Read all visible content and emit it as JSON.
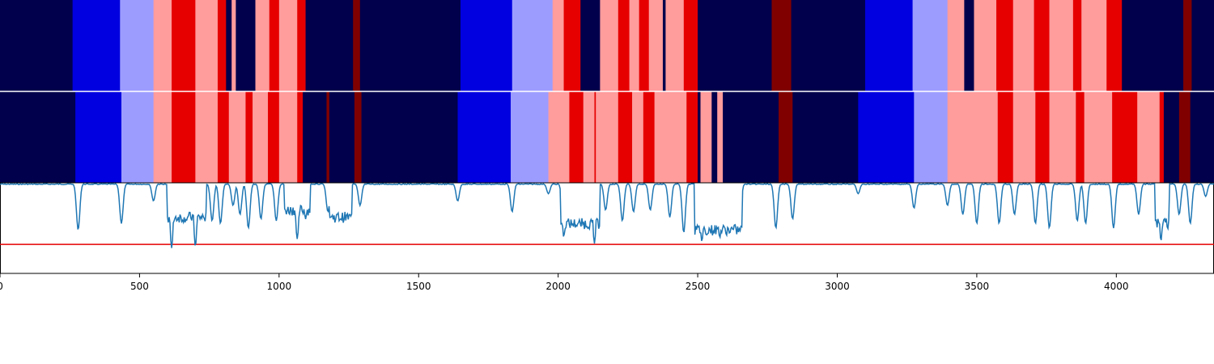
{
  "chart_data": {
    "type": "heatmap",
    "xlim": [
      0,
      4350
    ],
    "x_ticks": [
      0,
      500,
      1000,
      1500,
      2000,
      2500,
      3000,
      3500,
      4000
    ],
    "palette": {
      "0": "#00004c",
      "1": "#0000e0",
      "2": "#9c9cff",
      "3": "#ff9c9c",
      "4": "#e60000",
      "5": "#800000"
    },
    "tracks": [
      {
        "segments": [
          [
            0,
            260,
            0
          ],
          [
            260,
            430,
            1
          ],
          [
            430,
            550,
            2
          ],
          [
            550,
            615,
            3
          ],
          [
            615,
            700,
            4
          ],
          [
            700,
            780,
            3
          ],
          [
            780,
            810,
            4
          ],
          [
            810,
            830,
            0
          ],
          [
            830,
            845,
            3
          ],
          [
            845,
            915,
            0
          ],
          [
            915,
            965,
            3
          ],
          [
            965,
            1000,
            4
          ],
          [
            1000,
            1065,
            3
          ],
          [
            1065,
            1095,
            4
          ],
          [
            1095,
            1265,
            0
          ],
          [
            1265,
            1290,
            5
          ],
          [
            1290,
            1650,
            0
          ],
          [
            1650,
            1835,
            1
          ],
          [
            1835,
            1980,
            2
          ],
          [
            1980,
            2020,
            3
          ],
          [
            2020,
            2080,
            4
          ],
          [
            2080,
            2150,
            0
          ],
          [
            2150,
            2215,
            3
          ],
          [
            2215,
            2255,
            4
          ],
          [
            2255,
            2290,
            3
          ],
          [
            2290,
            2325,
            4
          ],
          [
            2325,
            2375,
            3
          ],
          [
            2375,
            2385,
            0
          ],
          [
            2385,
            2395,
            3
          ],
          [
            2395,
            2450,
            3
          ],
          [
            2450,
            2500,
            4
          ],
          [
            2500,
            2765,
            0
          ],
          [
            2765,
            2835,
            5
          ],
          [
            2835,
            3100,
            0
          ],
          [
            3100,
            3270,
            1
          ],
          [
            3270,
            3395,
            2
          ],
          [
            3395,
            3455,
            3
          ],
          [
            3455,
            3490,
            0
          ],
          [
            3490,
            3570,
            3
          ],
          [
            3570,
            3630,
            4
          ],
          [
            3630,
            3705,
            3
          ],
          [
            3705,
            3760,
            4
          ],
          [
            3760,
            3845,
            3
          ],
          [
            3845,
            3875,
            4
          ],
          [
            3875,
            3965,
            3
          ],
          [
            3965,
            4020,
            4
          ],
          [
            4020,
            4240,
            0
          ],
          [
            4240,
            4270,
            5
          ],
          [
            4270,
            4350,
            0
          ]
        ]
      },
      {
        "segments": [
          [
            0,
            270,
            0
          ],
          [
            270,
            435,
            1
          ],
          [
            435,
            550,
            2
          ],
          [
            550,
            615,
            3
          ],
          [
            615,
            700,
            4
          ],
          [
            700,
            780,
            3
          ],
          [
            780,
            820,
            4
          ],
          [
            820,
            880,
            3
          ],
          [
            880,
            905,
            4
          ],
          [
            905,
            960,
            3
          ],
          [
            960,
            1000,
            4
          ],
          [
            1000,
            1065,
            3
          ],
          [
            1065,
            1085,
            4
          ],
          [
            1085,
            1170,
            0
          ],
          [
            1170,
            1180,
            5
          ],
          [
            1180,
            1270,
            0
          ],
          [
            1270,
            1295,
            5
          ],
          [
            1295,
            1640,
            0
          ],
          [
            1640,
            1830,
            1
          ],
          [
            1830,
            1965,
            2
          ],
          [
            1965,
            2040,
            3
          ],
          [
            2040,
            2090,
            4
          ],
          [
            2090,
            2130,
            3
          ],
          [
            2130,
            2135,
            4
          ],
          [
            2135,
            2215,
            3
          ],
          [
            2215,
            2265,
            4
          ],
          [
            2265,
            2305,
            3
          ],
          [
            2305,
            2345,
            4
          ],
          [
            2345,
            2460,
            3
          ],
          [
            2460,
            2500,
            4
          ],
          [
            2500,
            2510,
            0
          ],
          [
            2510,
            2550,
            3
          ],
          [
            2550,
            2570,
            0
          ],
          [
            2570,
            2590,
            3
          ],
          [
            2590,
            2790,
            0
          ],
          [
            2790,
            2840,
            5
          ],
          [
            2840,
            3075,
            0
          ],
          [
            3075,
            3275,
            1
          ],
          [
            3275,
            3395,
            2
          ],
          [
            3395,
            3575,
            3
          ],
          [
            3575,
            3630,
            4
          ],
          [
            3630,
            3710,
            3
          ],
          [
            3710,
            3760,
            4
          ],
          [
            3760,
            3855,
            3
          ],
          [
            3855,
            3885,
            4
          ],
          [
            3885,
            3985,
            3
          ],
          [
            3985,
            4075,
            4
          ],
          [
            4075,
            4155,
            3
          ],
          [
            4155,
            4170,
            4
          ],
          [
            4170,
            4225,
            0
          ],
          [
            4225,
            4265,
            5
          ],
          [
            4265,
            4350,
            0
          ]
        ]
      }
    ],
    "line": {
      "color": "#1f77b4",
      "ylim": [
        0,
        1
      ],
      "threshold": 0.32,
      "threshold_color": "#e60000",
      "baseline": 0.99,
      "dips": [
        [
          280,
          0.48
        ],
        [
          435,
          0.55
        ],
        [
          550,
          0.8
        ],
        [
          615,
          0.28
        ],
        [
          660,
          0.62
        ],
        [
          700,
          0.3
        ],
        [
          760,
          0.58
        ],
        [
          790,
          0.55
        ],
        [
          835,
          0.75
        ],
        [
          860,
          0.65
        ],
        [
          890,
          0.5
        ],
        [
          935,
          0.6
        ],
        [
          990,
          0.58
        ],
        [
          1065,
          0.38
        ],
        [
          1095,
          0.6
        ],
        [
          1175,
          0.68
        ],
        [
          1290,
          0.75
        ],
        [
          1640,
          0.8
        ],
        [
          1835,
          0.68
        ],
        [
          1965,
          0.88
        ],
        [
          2020,
          0.4
        ],
        [
          2080,
          0.55
        ],
        [
          2130,
          0.33
        ],
        [
          2170,
          0.7
        ],
        [
          2230,
          0.58
        ],
        [
          2270,
          0.68
        ],
        [
          2330,
          0.7
        ],
        [
          2400,
          0.62
        ],
        [
          2450,
          0.45
        ],
        [
          2515,
          0.35
        ],
        [
          2580,
          0.4
        ],
        [
          2650,
          0.58
        ],
        [
          2780,
          0.5
        ],
        [
          2840,
          0.6
        ],
        [
          3075,
          0.88
        ],
        [
          3275,
          0.72
        ],
        [
          3395,
          0.75
        ],
        [
          3450,
          0.65
        ],
        [
          3500,
          0.55
        ],
        [
          3580,
          0.55
        ],
        [
          3635,
          0.65
        ],
        [
          3710,
          0.55
        ],
        [
          3760,
          0.5
        ],
        [
          3860,
          0.58
        ],
        [
          3890,
          0.55
        ],
        [
          3990,
          0.5
        ],
        [
          4080,
          0.65
        ],
        [
          4160,
          0.36
        ],
        [
          4225,
          0.65
        ],
        [
          4265,
          0.55
        ],
        [
          4320,
          0.85
        ]
      ],
      "plateaus": [
        [
          600,
          740,
          0.62
        ],
        [
          1020,
          1110,
          0.7
        ],
        [
          1180,
          1260,
          0.62
        ],
        [
          2010,
          2150,
          0.55
        ],
        [
          2490,
          2660,
          0.48
        ],
        [
          4140,
          4190,
          0.55
        ]
      ]
    }
  }
}
